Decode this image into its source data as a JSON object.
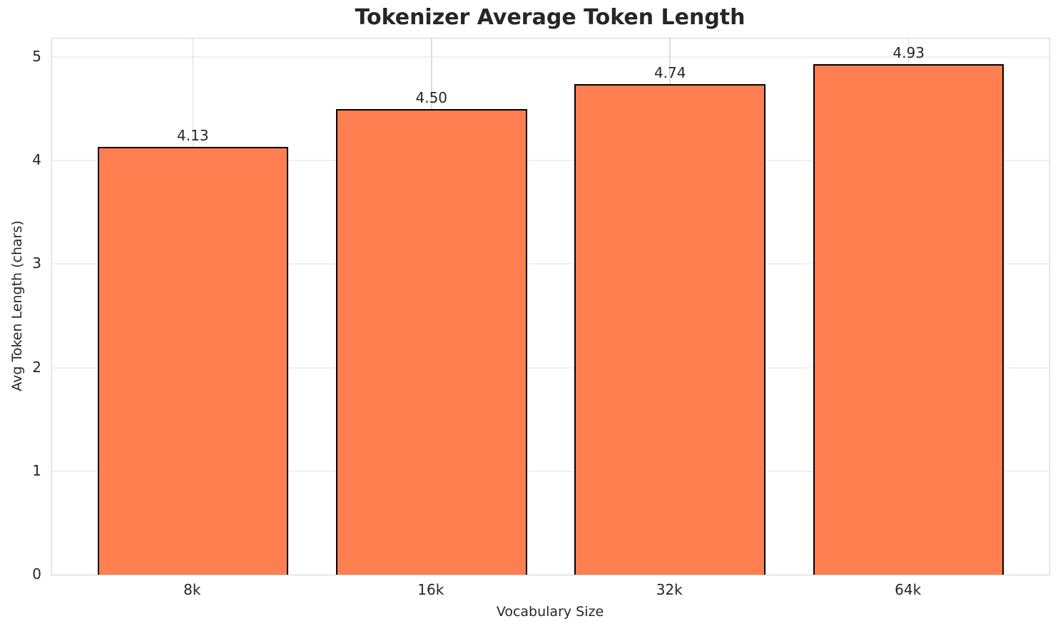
{
  "chart_data": {
    "type": "bar",
    "title": "Tokenizer Average Token Length",
    "xlabel": "Vocabulary Size",
    "ylabel": "Avg Token Length (chars)",
    "categories": [
      "8k",
      "16k",
      "32k",
      "64k"
    ],
    "values": [
      4.13,
      4.5,
      4.74,
      4.93
    ],
    "value_labels": [
      "4.13",
      "4.50",
      "4.74",
      "4.93"
    ],
    "yticks": [
      0,
      1,
      2,
      3,
      4,
      5
    ],
    "ylim": [
      0,
      5.18
    ],
    "grid": true,
    "legend": "none",
    "bar_color": "#FF7F50",
    "bar_edge_color": "#000000",
    "text_color": "#262626"
  }
}
